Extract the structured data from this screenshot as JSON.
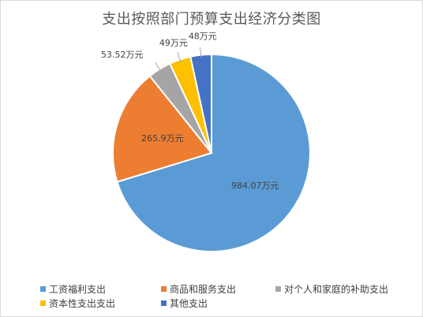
{
  "chart_data": {
    "type": "pie",
    "title": "支出按照部门预算支出经济分类图",
    "categories": [
      "工资福利支出",
      "商品和服务支出",
      "对个人和家庭的补助支出",
      "资本性支出支出",
      "其他支出"
    ],
    "values": [
      984.07,
      265.9,
      53.52,
      49,
      48
    ],
    "data_labels": [
      "984.07万元",
      "265.9万元",
      "53.52万元",
      "49万元",
      "48万元"
    ],
    "colors": [
      "#5b9bd5",
      "#ed7d31",
      "#a5a5a5",
      "#ffc000",
      "#4472c4"
    ],
    "legend_position": "bottom"
  }
}
